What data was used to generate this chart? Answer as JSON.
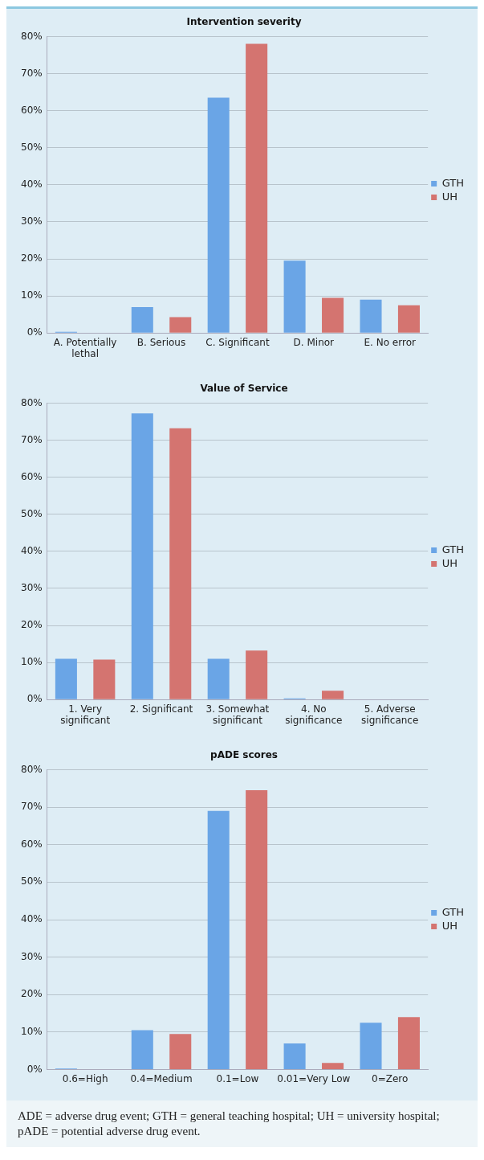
{
  "chart_data": [
    {
      "type": "bar",
      "title": "Intervention severity",
      "categories": [
        "A. Potentially lethal",
        "B. Serious",
        "C. Significant",
        "D. Minor",
        "E. No error"
      ],
      "series": [
        {
          "name": "GTH",
          "color": "#6aa5e6",
          "values": [
            0.3,
            7,
            63.5,
            19.5,
            9
          ]
        },
        {
          "name": "UH",
          "color": "#d47470",
          "values": [
            0,
            4.3,
            78,
            9.5,
            7.5
          ]
        }
      ],
      "ylim": [
        0,
        80
      ],
      "yticks": [
        {
          "value": 0,
          "label": "0%"
        },
        {
          "value": 10,
          "label": "10%"
        },
        {
          "value": 20,
          "label": "20%"
        },
        {
          "value": 30,
          "label": "30%"
        },
        {
          "value": 40,
          "label": "40%"
        },
        {
          "value": 50,
          "label": "50%"
        },
        {
          "value": 60,
          "label": "60%"
        },
        {
          "value": 70,
          "label": "70%"
        },
        {
          "value": 80,
          "label": "80%"
        }
      ],
      "grid": "y",
      "legend": "right"
    },
    {
      "type": "bar",
      "title": "Value of Service",
      "categories": [
        "1. Very significant",
        "2. Significant",
        "3. Somewhat significant",
        "4. No significance",
        "5. Adverse significance"
      ],
      "series": [
        {
          "name": "GTH",
          "color": "#6aa5e6",
          "values": [
            11,
            77.2,
            11,
            0.3,
            0
          ]
        },
        {
          "name": "UH",
          "color": "#d47470",
          "values": [
            10.8,
            73.2,
            13.2,
            2.4,
            0
          ]
        }
      ],
      "ylim": [
        0,
        80
      ],
      "yticks": [
        {
          "value": 0,
          "label": "0%"
        },
        {
          "value": 10,
          "label": "10%"
        },
        {
          "value": 20,
          "label": "20%"
        },
        {
          "value": 30,
          "label": "30%"
        },
        {
          "value": 40,
          "label": "40%"
        },
        {
          "value": 50,
          "label": "50%"
        },
        {
          "value": 60,
          "label": "60%"
        },
        {
          "value": 70,
          "label": "70%"
        },
        {
          "value": 80,
          "label": "80%"
        }
      ],
      "grid": "y",
      "legend": "right"
    },
    {
      "type": "bar",
      "title": "pADE scores",
      "categories": [
        "0.6=High",
        "0.4=Medium",
        "0.1=Low",
        "0.01=Very Low",
        "0=Zero"
      ],
      "series": [
        {
          "name": "GTH",
          "color": "#6aa5e6",
          "values": [
            0.3,
            10.5,
            69,
            7,
            12.5
          ]
        },
        {
          "name": "UH",
          "color": "#d47470",
          "values": [
            0,
            9.5,
            74.5,
            1.8,
            14
          ]
        }
      ],
      "ylim": [
        0,
        80
      ],
      "yticks": [
        {
          "value": 0,
          "label": "0%"
        },
        {
          "value": 10,
          "label": "10%"
        },
        {
          "value": 20,
          "label": "20%"
        },
        {
          "value": 30,
          "label": "30%"
        },
        {
          "value": 40,
          "label": "40%"
        },
        {
          "value": 50,
          "label": "50%"
        },
        {
          "value": 60,
          "label": "60%"
        },
        {
          "value": 70,
          "label": "70%"
        },
        {
          "value": 80,
          "label": "80%"
        }
      ],
      "grid": "y",
      "legend": "right",
      "annotations": [
        "ADE = adverse drug event; GTH = general teaching hospital; UH = university hospital; pADE = potential adverse drug event."
      ]
    }
  ]
}
